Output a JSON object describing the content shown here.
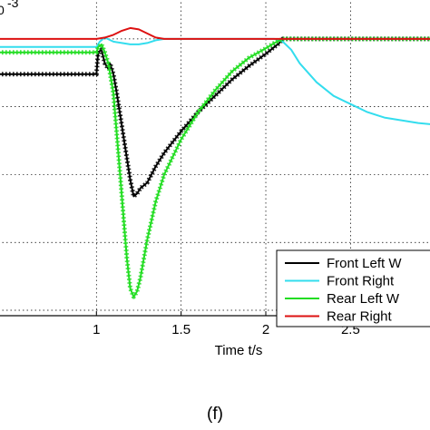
{
  "chart_data": {
    "type": "line",
    "title": "",
    "xlabel": "Time t/s",
    "ylabel": "",
    "exponent_label": "-3",
    "panel_label": "(f)",
    "xlim": [
      0.42,
      2.98
    ],
    "ylim": [
      -10.2,
      1.5
    ],
    "x_ticks": [
      1,
      1.5,
      2,
      2.5
    ],
    "x_tick_labels": [
      "1",
      "1.5",
      "2",
      "2.5"
    ],
    "y_gridlines": [
      -10,
      -7.5,
      -5,
      -2.5,
      0
    ],
    "grid": true,
    "legend_position": "bottom-right",
    "series": [
      {
        "name": "Front Left W",
        "color": "#000000",
        "x": [
          0.42,
          0.6,
          0.8,
          1.0,
          1.01,
          1.03,
          1.05,
          1.07,
          1.08,
          1.1,
          1.12,
          1.15,
          1.18,
          1.2,
          1.22,
          1.24,
          1.26,
          1.3,
          1.35,
          1.4,
          1.5,
          1.6,
          1.7,
          1.8,
          1.9,
          2.0,
          2.05,
          2.08,
          2.1,
          2.2,
          2.3,
          2.4,
          2.5,
          2.6,
          2.7,
          2.8,
          2.9,
          2.98
        ],
        "values": [
          -1.3,
          -1.3,
          -1.3,
          -1.3,
          -0.5,
          -0.4,
          -0.9,
          -1.1,
          -0.9,
          -1.3,
          -2.0,
          -3.2,
          -4.4,
          -5.2,
          -5.8,
          -5.7,
          -5.5,
          -5.3,
          -4.7,
          -4.2,
          -3.4,
          -2.7,
          -2.1,
          -1.5,
          -1.0,
          -0.55,
          -0.3,
          -0.15,
          0,
          0,
          0,
          0,
          0,
          0,
          0,
          0,
          0,
          0
        ]
      },
      {
        "name": "Front Right",
        "color": "#33ddee",
        "x": [
          0.42,
          0.6,
          0.8,
          1.0,
          1.02,
          1.05,
          1.1,
          1.15,
          1.2,
          1.25,
          1.3,
          1.35,
          1.4,
          1.5,
          1.7,
          1.9,
          2.05,
          2.1,
          2.15,
          2.2,
          2.3,
          2.4,
          2.5,
          2.6,
          2.7,
          2.8,
          2.9,
          2.98
        ],
        "values": [
          -0.3,
          -0.3,
          -0.3,
          -0.3,
          -0.1,
          0.05,
          -0.1,
          -0.15,
          -0.2,
          -0.2,
          -0.15,
          -0.05,
          0,
          0,
          0,
          0,
          0,
          -0.1,
          -0.4,
          -0.9,
          -1.6,
          -2.1,
          -2.4,
          -2.7,
          -2.9,
          -3.0,
          -3.1,
          -3.15
        ]
      },
      {
        "name": "Rear Left W",
        "color": "#22dd22",
        "x": [
          0.42,
          0.6,
          0.8,
          1.0,
          1.01,
          1.03,
          1.05,
          1.07,
          1.1,
          1.12,
          1.14,
          1.16,
          1.18,
          1.2,
          1.22,
          1.24,
          1.26,
          1.3,
          1.35,
          1.4,
          1.5,
          1.6,
          1.7,
          1.8,
          1.9,
          2.0,
          2.05,
          2.1,
          2.2,
          2.3,
          2.4,
          2.5,
          2.6,
          2.7,
          2.8,
          2.9,
          2.98
        ],
        "values": [
          -0.5,
          -0.5,
          -0.5,
          -0.5,
          -0.3,
          -0.2,
          -0.5,
          -0.9,
          -2.0,
          -3.5,
          -5.0,
          -6.6,
          -8.1,
          -9.2,
          -9.5,
          -9.3,
          -8.8,
          -7.4,
          -6.0,
          -5.0,
          -3.7,
          -2.7,
          -1.9,
          -1.2,
          -0.7,
          -0.35,
          -0.15,
          0,
          0,
          0,
          0,
          0,
          0,
          0,
          0,
          0,
          0
        ]
      },
      {
        "name": "Rear Right",
        "color": "#dd1111",
        "x": [
          0.42,
          0.6,
          0.8,
          1.0,
          1.05,
          1.1,
          1.15,
          1.2,
          1.25,
          1.3,
          1.35,
          1.4,
          1.5,
          1.7,
          1.9,
          2.1,
          2.3,
          2.5,
          2.7,
          2.9,
          2.98
        ],
        "values": [
          0,
          0,
          0,
          0,
          0.05,
          0.15,
          0.3,
          0.4,
          0.35,
          0.2,
          0.05,
          0,
          0,
          0,
          0,
          0,
          0,
          0,
          0,
          0,
          0
        ]
      }
    ]
  }
}
